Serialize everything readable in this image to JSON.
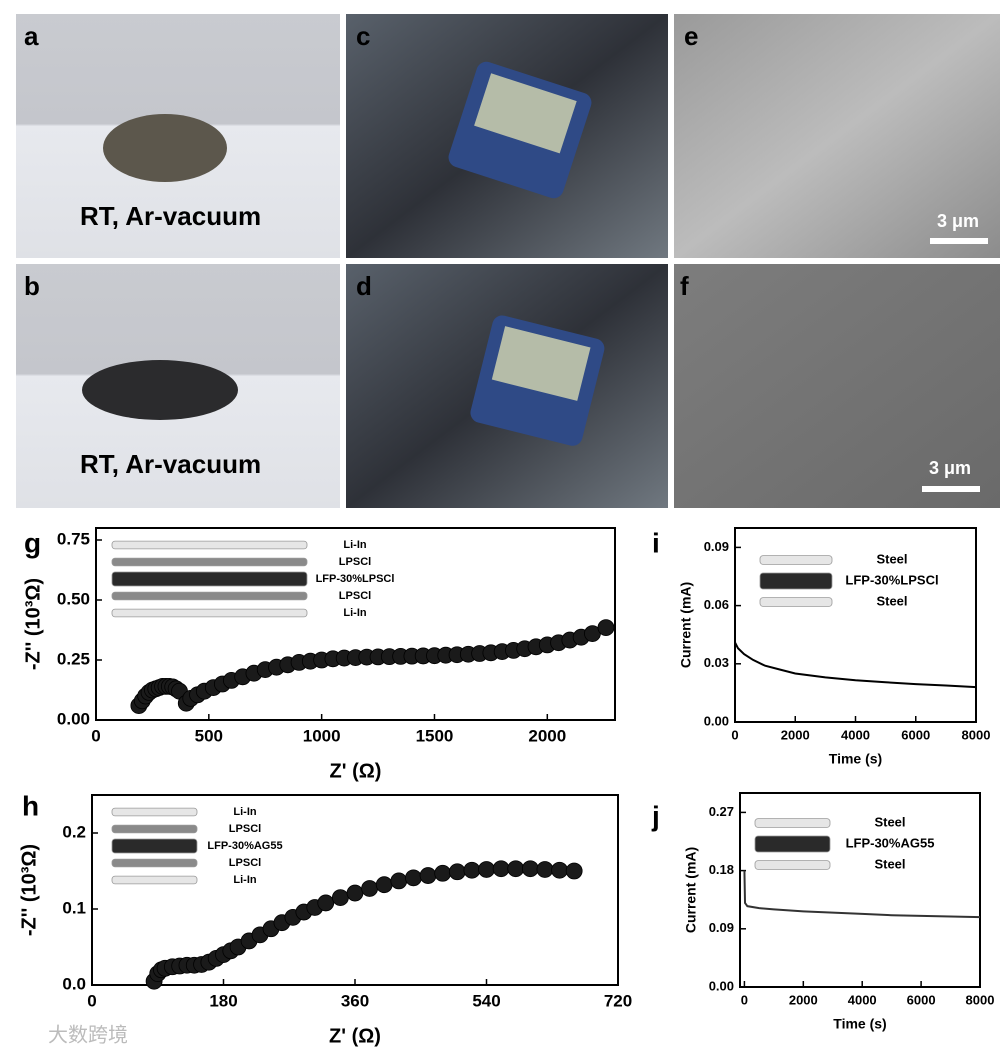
{
  "photos": [
    {
      "panel": "a",
      "caption": "RT, Ar-vacuum"
    },
    {
      "panel": "b",
      "caption": "RT, Ar-vacuum"
    },
    {
      "panel": "c"
    },
    {
      "panel": "d"
    },
    {
      "panel": "e",
      "scale": "3 μm"
    },
    {
      "panel": "f",
      "scale": "3 μm"
    }
  ],
  "watermark": "大数跨境",
  "chart_data": [
    {
      "type": "scatter",
      "panel": "g",
      "xlabel": "Z' (Ω)",
      "ylabel": "-Z'' (10³Ω)",
      "color": "#1a1a1a",
      "xlim": [
        0,
        2300
      ],
      "ylim": [
        0,
        0.8
      ],
      "xticks": [
        0,
        500,
        1000,
        1500,
        2000
      ],
      "yticks": [
        {
          "value": 0,
          "label": "0.00"
        },
        {
          "value": 0.25,
          "label": "0.25"
        },
        {
          "value": 0.5,
          "label": "0.50"
        },
        {
          "value": 0.75,
          "label": "0.75"
        }
      ],
      "inset_labels": [
        "Li-In",
        "LPSCl",
        "LFP-30%LPSCl",
        "LPSCl",
        "Li-In"
      ],
      "inset_colors": [
        "#e6e6e6",
        "#8a8a8a",
        "#2a2a2a",
        "#8a8a8a",
        "#e6e6e6"
      ],
      "x": [
        190,
        205,
        220,
        235,
        250,
        265,
        280,
        295,
        310,
        325,
        340,
        355,
        370,
        400,
        420,
        450,
        480,
        520,
        560,
        600,
        650,
        700,
        750,
        800,
        850,
        900,
        950,
        1000,
        1050,
        1100,
        1150,
        1200,
        1250,
        1300,
        1350,
        1400,
        1450,
        1500,
        1550,
        1600,
        1650,
        1700,
        1750,
        1800,
        1850,
        1900,
        1950,
        2000,
        2050,
        2100,
        2150,
        2200,
        2260
      ],
      "y": [
        0.06,
        0.08,
        0.1,
        0.115,
        0.125,
        0.13,
        0.135,
        0.14,
        0.14,
        0.14,
        0.138,
        0.13,
        0.12,
        0.07,
        0.09,
        0.105,
        0.12,
        0.135,
        0.15,
        0.165,
        0.18,
        0.195,
        0.21,
        0.22,
        0.23,
        0.24,
        0.245,
        0.25,
        0.255,
        0.258,
        0.26,
        0.262,
        0.263,
        0.264,
        0.265,
        0.266,
        0.267,
        0.268,
        0.27,
        0.272,
        0.274,
        0.277,
        0.28,
        0.285,
        0.29,
        0.297,
        0.305,
        0.313,
        0.322,
        0.333,
        0.345,
        0.36,
        0.385
      ]
    },
    {
      "type": "scatter",
      "panel": "h",
      "xlabel": "Z' (Ω)",
      "ylabel": "-Z'' (10³Ω)",
      "color": "#1a1a1a",
      "xlim": [
        0,
        720
      ],
      "ylim": [
        0,
        0.25
      ],
      "xticks": [
        0,
        180,
        360,
        540,
        720
      ],
      "yticks": [
        {
          "value": 0,
          "label": "0.0"
        },
        {
          "value": 0.1,
          "label": "0.1"
        },
        {
          "value": 0.2,
          "label": "0.2"
        }
      ],
      "inset_labels": [
        "Li-In",
        "LPSCl",
        "LFP-30%AG55",
        "LPSCl",
        "Li-In"
      ],
      "inset_colors": [
        "#e6e6e6",
        "#8a8a8a",
        "#2a2a2a",
        "#8a8a8a",
        "#e6e6e6"
      ],
      "x": [
        85,
        90,
        95,
        100,
        110,
        120,
        130,
        140,
        150,
        160,
        170,
        180,
        190,
        200,
        215,
        230,
        245,
        260,
        275,
        290,
        305,
        320,
        340,
        360,
        380,
        400,
        420,
        440,
        460,
        480,
        500,
        520,
        540,
        560,
        580,
        600,
        620,
        640,
        660
      ],
      "y": [
        0.005,
        0.015,
        0.02,
        0.022,
        0.024,
        0.025,
        0.026,
        0.026,
        0.027,
        0.03,
        0.035,
        0.04,
        0.045,
        0.05,
        0.058,
        0.066,
        0.074,
        0.082,
        0.089,
        0.096,
        0.102,
        0.108,
        0.115,
        0.121,
        0.127,
        0.132,
        0.137,
        0.141,
        0.144,
        0.147,
        0.149,
        0.151,
        0.152,
        0.153,
        0.153,
        0.153,
        0.152,
        0.151,
        0.15
      ]
    },
    {
      "type": "line",
      "panel": "i",
      "xlabel": "Time (s)",
      "ylabel": "Current (mA)",
      "color": "#000000",
      "xlim": [
        0,
        8000
      ],
      "ylim": [
        0,
        0.1
      ],
      "xticks": [
        0,
        2000,
        4000,
        6000,
        8000
      ],
      "yticks": [
        {
          "value": 0,
          "label": "0.00"
        },
        {
          "value": 0.03,
          "label": "0.03"
        },
        {
          "value": 0.06,
          "label": "0.06"
        },
        {
          "value": 0.09,
          "label": "0.09"
        }
      ],
      "inset_labels": [
        "Steel",
        "LFP-30%LPSCl",
        "Steel"
      ],
      "inset_colors": [
        "#e6e6e6",
        "#2a2a2a",
        "#e6e6e6"
      ],
      "x": [
        0,
        100,
        300,
        600,
        1000,
        1500,
        2000,
        3000,
        4000,
        5000,
        6000,
        7000,
        8000
      ],
      "y": [
        0.041,
        0.038,
        0.035,
        0.032,
        0.029,
        0.027,
        0.025,
        0.023,
        0.0215,
        0.0205,
        0.0195,
        0.0188,
        0.018
      ]
    },
    {
      "type": "line",
      "panel": "j",
      "xlabel": "Time (s)",
      "ylabel": "Current (mA)",
      "color": "#333333",
      "xlim": [
        -150,
        8000
      ],
      "ylim": [
        0,
        0.3
      ],
      "xticks": [
        0,
        2000,
        4000,
        6000,
        8000
      ],
      "yticks": [
        {
          "value": 0,
          "label": "0.00"
        },
        {
          "value": 0.09,
          "label": "0.09"
        },
        {
          "value": 0.18,
          "label": "0.18"
        },
        {
          "value": 0.27,
          "label": "0.27"
        }
      ],
      "inset_labels": [
        "Steel",
        "LFP-30%AG55",
        "Steel"
      ],
      "inset_colors": [
        "#e6e6e6",
        "#2a2a2a",
        "#e6e6e6"
      ],
      "x": [
        0,
        20,
        100,
        500,
        1000,
        2000,
        3000,
        4000,
        5000,
        6000,
        7000,
        8000
      ],
      "y": [
        0.18,
        0.13,
        0.125,
        0.122,
        0.12,
        0.117,
        0.115,
        0.113,
        0.111,
        0.11,
        0.109,
        0.108
      ]
    }
  ]
}
